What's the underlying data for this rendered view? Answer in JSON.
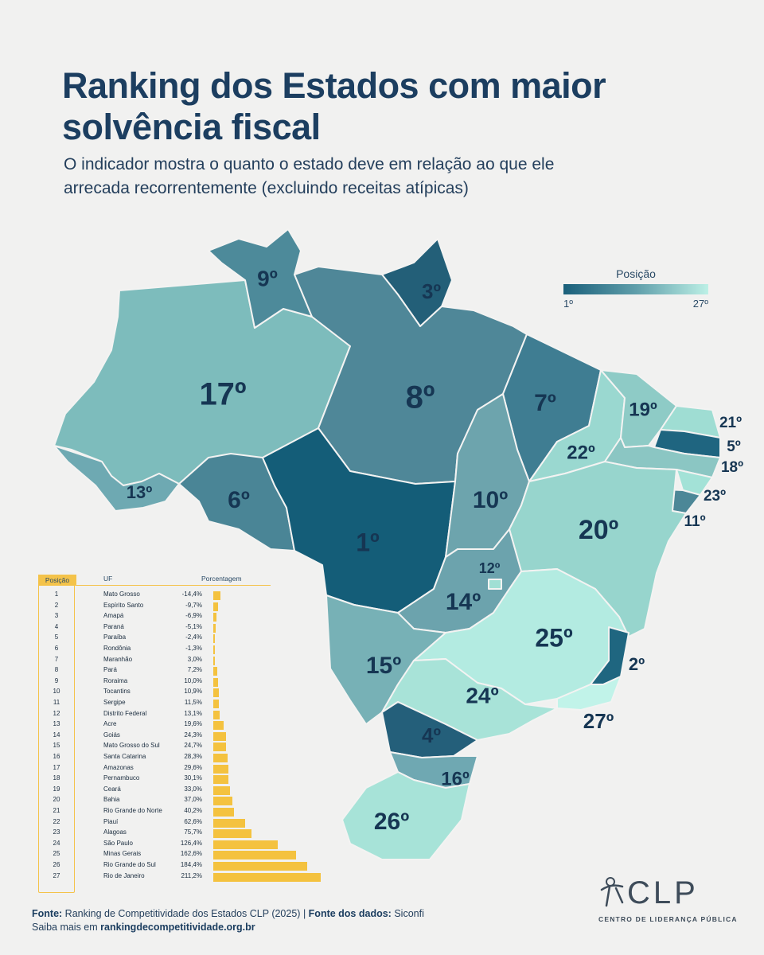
{
  "header": {
    "title": "Ranking dos Estados com maior solvência fiscal",
    "subtitle": "O indicador mostra o quanto o estado deve em relação ao que ele arrecada recorrentemente (excluindo receitas atípicas)"
  },
  "legend": {
    "title": "Posição",
    "min_label": "1º",
    "max_label": "27º",
    "color_start": "#1a5f7a",
    "color_end": "#bdf0e6"
  },
  "map_labels": [
    {
      "uf": "RR",
      "rank": "9º"
    },
    {
      "uf": "AP",
      "rank": "3º"
    },
    {
      "uf": "AM",
      "rank": "17º"
    },
    {
      "uf": "PA",
      "rank": "8º"
    },
    {
      "uf": "MA",
      "rank": "7º"
    },
    {
      "uf": "CE",
      "rank": "19º"
    },
    {
      "uf": "RN",
      "rank": "21º"
    },
    {
      "uf": "PB",
      "rank": "5º"
    },
    {
      "uf": "PE",
      "rank": "18º"
    },
    {
      "uf": "AL",
      "rank": "23º"
    },
    {
      "uf": "SE",
      "rank": "11º"
    },
    {
      "uf": "PI",
      "rank": "22º"
    },
    {
      "uf": "AC",
      "rank": "13º"
    },
    {
      "uf": "RO",
      "rank": "6º"
    },
    {
      "uf": "TO",
      "rank": "10º"
    },
    {
      "uf": "BA",
      "rank": "20º"
    },
    {
      "uf": "MT",
      "rank": "1º"
    },
    {
      "uf": "DF",
      "rank": "12º"
    },
    {
      "uf": "GO",
      "rank": "14º"
    },
    {
      "uf": "MG",
      "rank": "25º"
    },
    {
      "uf": "ES",
      "rank": "2º"
    },
    {
      "uf": "MS",
      "rank": "15º"
    },
    {
      "uf": "SP",
      "rank": "24º"
    },
    {
      "uf": "RJ",
      "rank": "27º"
    },
    {
      "uf": "PR",
      "rank": "4º"
    },
    {
      "uf": "SC",
      "rank": "16º"
    },
    {
      "uf": "RS",
      "rank": "26º"
    }
  ],
  "table": {
    "headers": {
      "pos": "Posição",
      "uf": "UF",
      "pct": "Porcentagem"
    },
    "bar_color": "#f4c23f",
    "rows": [
      {
        "pos": "1",
        "uf": "Mato Grosso",
        "pct": "-14,4%",
        "value": -14.4
      },
      {
        "pos": "2",
        "uf": "Espírito Santo",
        "pct": "-9,7%",
        "value": -9.7
      },
      {
        "pos": "3",
        "uf": "Amapá",
        "pct": "-6,9%",
        "value": -6.9
      },
      {
        "pos": "4",
        "uf": "Paraná",
        "pct": "-5,1%",
        "value": -5.1
      },
      {
        "pos": "5",
        "uf": "Paraíba",
        "pct": "-2,4%",
        "value": -2.4
      },
      {
        "pos": "6",
        "uf": "Rondônia",
        "pct": "-1,3%",
        "value": -1.3
      },
      {
        "pos": "7",
        "uf": "Maranhão",
        "pct": "3,0%",
        "value": 3.0
      },
      {
        "pos": "8",
        "uf": "Pará",
        "pct": "7,2%",
        "value": 7.2
      },
      {
        "pos": "9",
        "uf": "Roraima",
        "pct": "10,0%",
        "value": 10.0
      },
      {
        "pos": "10",
        "uf": "Tocantins",
        "pct": "10,9%",
        "value": 10.9
      },
      {
        "pos": "11",
        "uf": "Sergipe",
        "pct": "11,5%",
        "value": 11.5
      },
      {
        "pos": "12",
        "uf": "Distrito Federal",
        "pct": "13,1%",
        "value": 13.1
      },
      {
        "pos": "13",
        "uf": "Acre",
        "pct": "19,6%",
        "value": 19.6
      },
      {
        "pos": "14",
        "uf": "Goiás",
        "pct": "24,3%",
        "value": 24.3
      },
      {
        "pos": "15",
        "uf": "Mato Grosso do Sul",
        "pct": "24,7%",
        "value": 24.7
      },
      {
        "pos": "16",
        "uf": "Santa Catarina",
        "pct": "28,3%",
        "value": 28.3
      },
      {
        "pos": "17",
        "uf": "Amazonas",
        "pct": "29,6%",
        "value": 29.6
      },
      {
        "pos": "18",
        "uf": "Pernambuco",
        "pct": "30,1%",
        "value": 30.1
      },
      {
        "pos": "19",
        "uf": "Ceará",
        "pct": "33,0%",
        "value": 33.0
      },
      {
        "pos": "20",
        "uf": "Bahia",
        "pct": "37,0%",
        "value": 37.0
      },
      {
        "pos": "21",
        "uf": "Rio Grande do Norte",
        "pct": "40,2%",
        "value": 40.2
      },
      {
        "pos": "22",
        "uf": "Piauí",
        "pct": "62,6%",
        "value": 62.6
      },
      {
        "pos": "23",
        "uf": "Alagoas",
        "pct": "75,7%",
        "value": 75.7
      },
      {
        "pos": "24",
        "uf": "São Paulo",
        "pct": "126,4%",
        "value": 126.4
      },
      {
        "pos": "25",
        "uf": "Minas Gerais",
        "pct": "162,6%",
        "value": 162.6
      },
      {
        "pos": "26",
        "uf": "Rio Grande do Sul",
        "pct": "184,4%",
        "value": 184.4
      },
      {
        "pos": "27",
        "uf": "Rio de Janeiro",
        "pct": "211,2%",
        "value": 211.2
      }
    ]
  },
  "footer": {
    "fonte_label": "Fonte:",
    "fonte_text": "Ranking de Competitividade dos Estados CLP (2025)",
    "separator": "|",
    "dados_label": "Fonte dos dados:",
    "dados_text": "Siconfi",
    "saiba_text": "Saiba mais em",
    "site": "rankingdecompetitividade.org.br"
  },
  "logo": {
    "text": "CLP",
    "subtitle": "CENTRO DE LIDERANÇA PÚBLICA"
  }
}
